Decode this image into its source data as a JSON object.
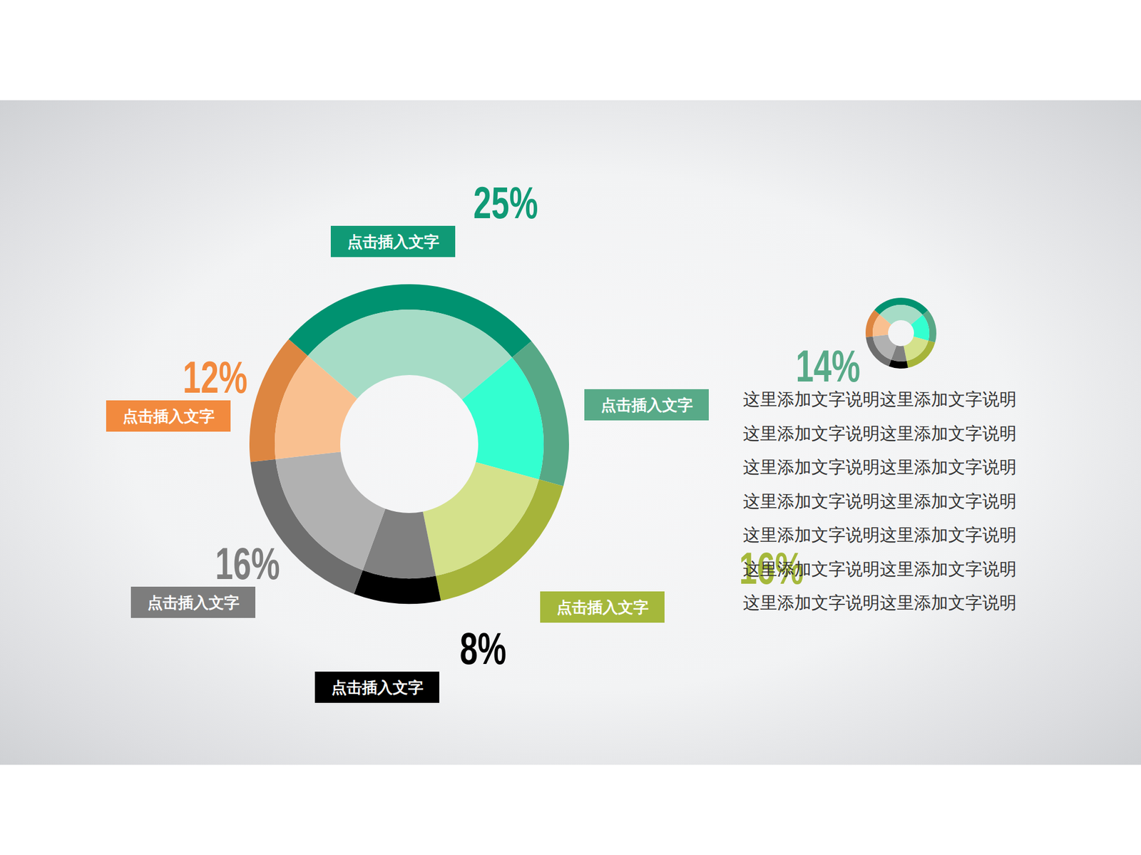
{
  "chart_data": {
    "type": "pie",
    "categories": [
      "点击插入文字",
      "点击插入文字",
      "点击插入文字",
      "点击插入文字",
      "点击插入文字",
      "点击插入文字"
    ],
    "values": [
      25,
      14,
      16,
      8,
      16,
      12
    ],
    "value_labels": [
      "25%",
      "14%",
      "16%",
      "8%",
      "16%",
      "12%"
    ],
    "colors": [
      "#109a76",
      "#58aa88",
      "#a5b83b",
      "#000000",
      "#7d7d7d",
      "#f28a3e"
    ],
    "data_labels": true
  },
  "text": {
    "lines": [
      "这里添加文字说明这里添加文字说明",
      "这里添加文字说明这里添加文字说明",
      "这里添加文字说明这里添加文字说明",
      "这里添加文字说明这里添加文字说明",
      "这里添加文字说明这里添加文字说明",
      "这里添加文字说明这里添加文字说明",
      "这里添加文字说明这里添加文字说明"
    ]
  }
}
